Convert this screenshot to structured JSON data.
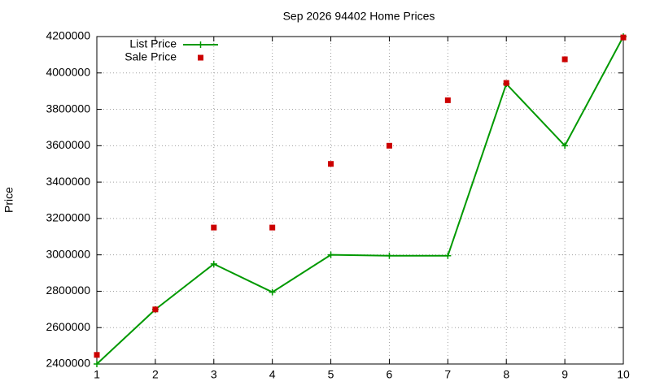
{
  "chart_data": {
    "type": "line",
    "title": "Sep 2026 94402 Home Prices",
    "y_label": "Price",
    "x": [
      1,
      2,
      3,
      4,
      5,
      6,
      7,
      8,
      9,
      10
    ],
    "series": [
      {
        "name": "List Price",
        "color": "#009900",
        "mode": "lines+markers",
        "values": [
          2400000,
          2700000,
          2950000,
          2795000,
          3000000,
          2995000,
          2995000,
          3940000,
          3600000,
          4200000
        ]
      },
      {
        "name": "Sale Price",
        "color": "#cc0000",
        "mode": "markers",
        "values": [
          2450000,
          2700000,
          3150000,
          3150000,
          3500000,
          3600000,
          3850000,
          3945000,
          4075000,
          4195000
        ]
      }
    ],
    "xlim": [
      1,
      10
    ],
    "xticks": [
      1,
      2,
      3,
      4,
      5,
      6,
      7,
      8,
      9,
      10
    ],
    "ylim": [
      2400000,
      4200000
    ],
    "yticks": [
      2400000,
      2600000,
      2800000,
      3000000,
      3200000,
      3400000,
      3600000,
      3800000,
      4000000,
      4200000
    ],
    "grid": true,
    "legend": "top-left"
  }
}
